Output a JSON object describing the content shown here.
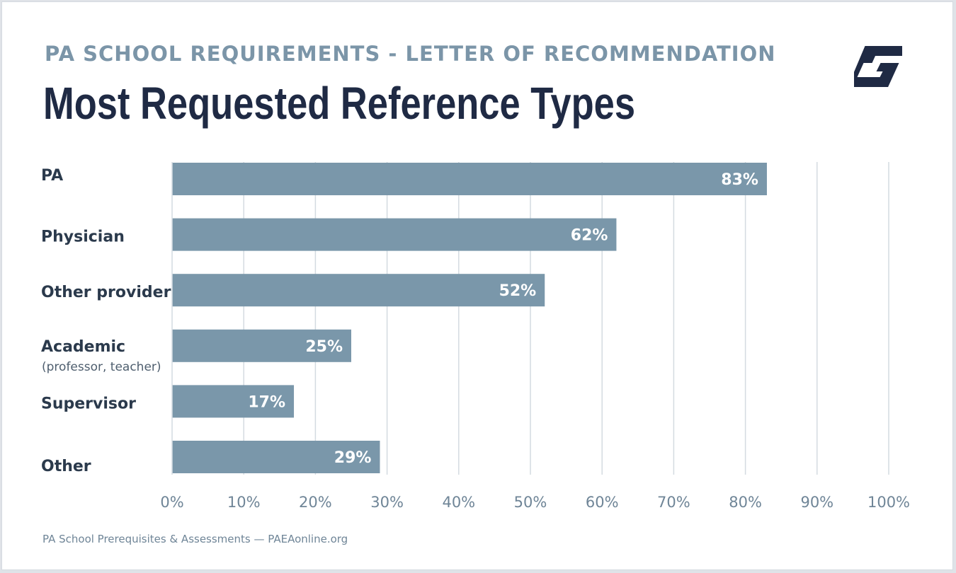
{
  "header": {
    "subtitle": "PA SCHOOL REQUIREMENTS - LETTER OF RECOMMENDATION",
    "title": "Most Requested Reference Types"
  },
  "footer": {
    "source": "PA School Prerequisites & Assessments — PAEAonline.org"
  },
  "logo": {
    "icon": "brand-g-logo-icon",
    "color": "#1f2a44"
  },
  "colors": {
    "bar": "#7a97aa",
    "grid": "#d4dbe1",
    "bar_label": "#ffffff",
    "category_label": "#2b3a4c",
    "tick_label": "#6f8597"
  },
  "chart_data": {
    "type": "bar",
    "orientation": "horizontal",
    "categories": [
      "PA",
      "Physician",
      "Other provider",
      "Academic",
      "Supervisor",
      "Other"
    ],
    "category_notes": [
      "",
      "",
      "",
      "(professor, teacher)",
      "",
      ""
    ],
    "values": [
      83,
      62,
      52,
      25,
      17,
      29
    ],
    "value_labels": [
      "83%",
      "62%",
      "52%",
      "25%",
      "17%",
      "29%"
    ],
    "xlim": [
      0,
      100
    ],
    "x_ticks": [
      0,
      10,
      20,
      30,
      40,
      50,
      60,
      70,
      80,
      90,
      100
    ],
    "x_tick_labels": [
      "0%",
      "10%",
      "20%",
      "30%",
      "40%",
      "50%",
      "60%",
      "70%",
      "80%",
      "90%",
      "100%"
    ],
    "grid": true
  }
}
